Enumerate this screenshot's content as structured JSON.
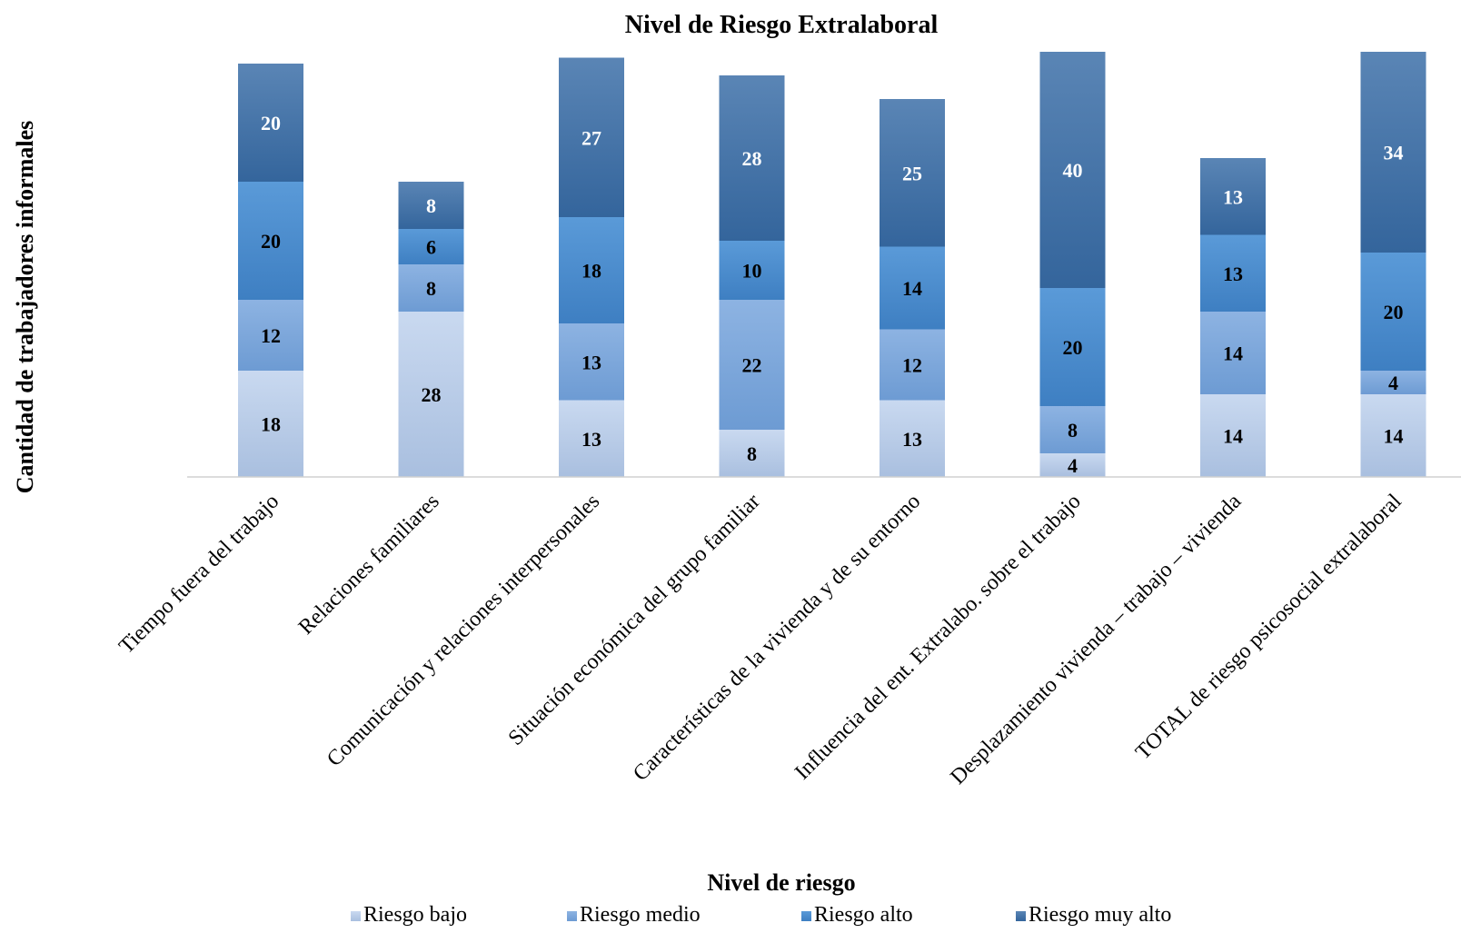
{
  "chart_data": {
    "type": "bar",
    "stacked": true,
    "title": "Nivel de Riesgo Extralaboral",
    "xlabel": "Nivel de riesgo",
    "ylabel": "Cantidad de trabajadores informales",
    "legend_position": "bottom",
    "grid": false,
    "categories": [
      "Tiempo fuera del trabajo",
      "Relaciones familiares",
      "Comunicación y relaciones interpersonales",
      "Situación económica del grupo familiar",
      "Características de la vivienda y de su entorno",
      "Influencia del ent. Extralabo. sobre el trabajo",
      "Desplazamiento vivienda – trabajo – vivienda",
      "TOTAL de riesgo psicosocial extralaboral"
    ],
    "series": [
      {
        "name": "Riesgo bajo",
        "color": "#c5d6ee",
        "label_color": "#000000",
        "values": [
          18,
          28,
          13,
          8,
          13,
          4,
          14,
          14
        ]
      },
      {
        "name": "Riesgo medio",
        "color": "#7ba7db",
        "label_color": "#000000",
        "values": [
          12,
          8,
          13,
          22,
          12,
          8,
          14,
          4
        ]
      },
      {
        "name": "Riesgo alto",
        "color": "#4a8ccc",
        "label_color": "#000000",
        "values": [
          20,
          6,
          18,
          10,
          14,
          20,
          13,
          20
        ]
      },
      {
        "name": "Riesgo muy alto",
        "color": "#3d6fa6",
        "label_color": "#ffffff",
        "values": [
          20,
          8,
          27,
          28,
          25,
          40,
          13,
          34
        ]
      }
    ],
    "ylim": [
      0,
      72
    ]
  }
}
